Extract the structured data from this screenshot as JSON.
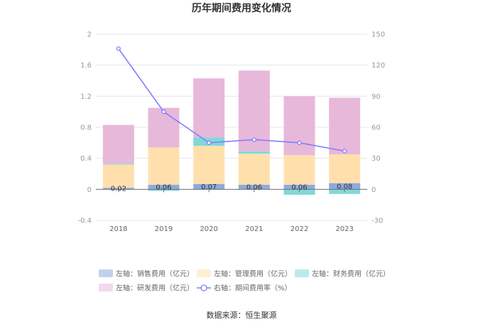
{
  "chart_data": {
    "type": "bar",
    "title": "历年期间费用变化情况",
    "categories": [
      "2018",
      "2019",
      "2020",
      "2021",
      "2022",
      "2023"
    ],
    "left_axis": {
      "min": -0.4,
      "max": 2,
      "ticks": [
        "2",
        "1.6",
        "1.2",
        "0.8",
        "0.4",
        "0",
        "-0.4"
      ]
    },
    "right_axis": {
      "min": -30,
      "max": 150,
      "ticks": [
        "150",
        "120",
        "90",
        "60",
        "30",
        "0",
        "-30"
      ]
    },
    "series": [
      {
        "name": "左轴：销售费用（亿元）",
        "type": "bar",
        "axis": "left",
        "color": "#8faadc",
        "values": [
          0.02,
          0.06,
          0.07,
          0.06,
          0.06,
          0.08
        ],
        "labels": [
          "0.02",
          "0.06",
          "0.07",
          "0.06",
          "0.06",
          "0.08"
        ]
      },
      {
        "name": "左轴：管理费用（亿元）",
        "type": "bar",
        "axis": "left",
        "color": "#ffe0ad",
        "values": [
          0.3,
          0.48,
          0.49,
          0.4,
          0.38,
          0.37
        ]
      },
      {
        "name": "左轴：财务费用（亿元）",
        "type": "bar",
        "axis": "left",
        "color": "#82d8d8",
        "values": [
          0.01,
          -0.02,
          0.11,
          0.03,
          -0.07,
          -0.06
        ]
      },
      {
        "name": "左轴：研发费用（亿元）",
        "type": "bar",
        "axis": "left",
        "color": "#e8b8da",
        "values": [
          0.5,
          0.51,
          0.76,
          1.04,
          0.76,
          0.73
        ]
      },
      {
        "name": "右轴：期间费用率（%）",
        "type": "line",
        "axis": "right",
        "color": "#7f7fff",
        "values": [
          136,
          75,
          45,
          48,
          45,
          37
        ]
      }
    ],
    "source": "数据来源：恒生聚源"
  }
}
